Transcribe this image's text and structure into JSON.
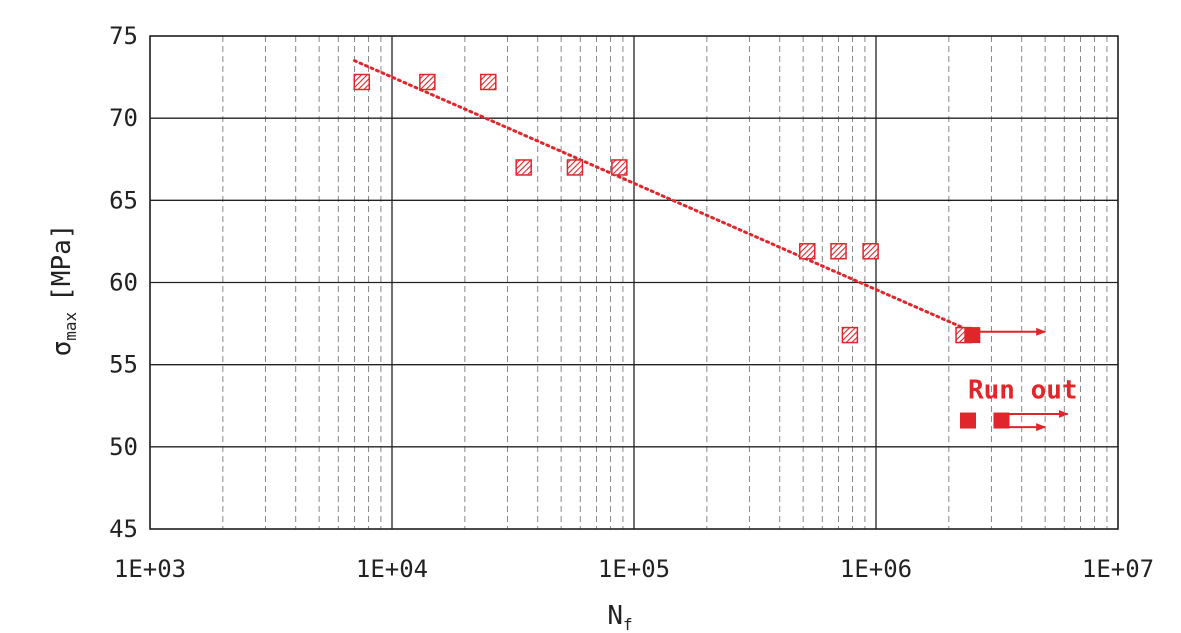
{
  "chart_data": {
    "type": "scatter",
    "x_scale": "log",
    "xlim": [
      1000,
      10000000
    ],
    "ylim": [
      45,
      75
    ],
    "x_ticks": [
      {
        "value": 1000,
        "label": "1E+03"
      },
      {
        "value": 10000,
        "label": "1E+04"
      },
      {
        "value": 100000,
        "label": "1E+05"
      },
      {
        "value": 1000000,
        "label": "1E+06"
      },
      {
        "value": 10000000,
        "label": "1E+07"
      }
    ],
    "y_ticks": [
      45,
      50,
      55,
      60,
      65,
      70,
      75
    ],
    "xlabel": {
      "main": "N",
      "sub": "f"
    },
    "ylabel": {
      "main": "σ",
      "sub": "max",
      "unit": "[MPa]"
    },
    "grid": {
      "major": true,
      "minor_x": true
    },
    "colors": {
      "marker": "#e0262b",
      "grid_major": "#222222",
      "grid_minor": "#888888"
    },
    "series": [
      {
        "marker": "hatched-square",
        "points": [
          {
            "x": 7500,
            "y": 72.2
          },
          {
            "x": 14000,
            "y": 72.2
          },
          {
            "x": 25000,
            "y": 72.2
          },
          {
            "x": 35000,
            "y": 67.0
          },
          {
            "x": 57000,
            "y": 67.0
          },
          {
            "x": 87000,
            "y": 67.0
          },
          {
            "x": 520000,
            "y": 61.9
          },
          {
            "x": 700000,
            "y": 61.9
          },
          {
            "x": 950000,
            "y": 61.9
          },
          {
            "x": 780000,
            "y": 56.8
          },
          {
            "x": 2300000,
            "y": 56.8
          }
        ]
      },
      {
        "marker": "filled-square",
        "runout": true,
        "points": [
          {
            "x": 2500000,
            "y": 56.8
          },
          {
            "x": 2400000,
            "y": 51.6
          },
          {
            "x": 3300000,
            "y": 51.6
          }
        ]
      }
    ],
    "trendline": {
      "style": "dotted",
      "points": [
        {
          "x": 7000,
          "y": 73.5
        },
        {
          "x": 2500000,
          "y": 57.0
        }
      ]
    },
    "runout_arrows": [
      {
        "x_start": 2500000,
        "x_end": 5000000,
        "y": 57.0
      },
      {
        "x_start": 3300000,
        "x_end": 6200000,
        "y": 52.0
      },
      {
        "x_start": 3300000,
        "x_end": 5000000,
        "y": 51.2
      }
    ],
    "annotations": [
      {
        "text": "Run out",
        "x": 2400000,
        "y": 53.5
      }
    ]
  }
}
